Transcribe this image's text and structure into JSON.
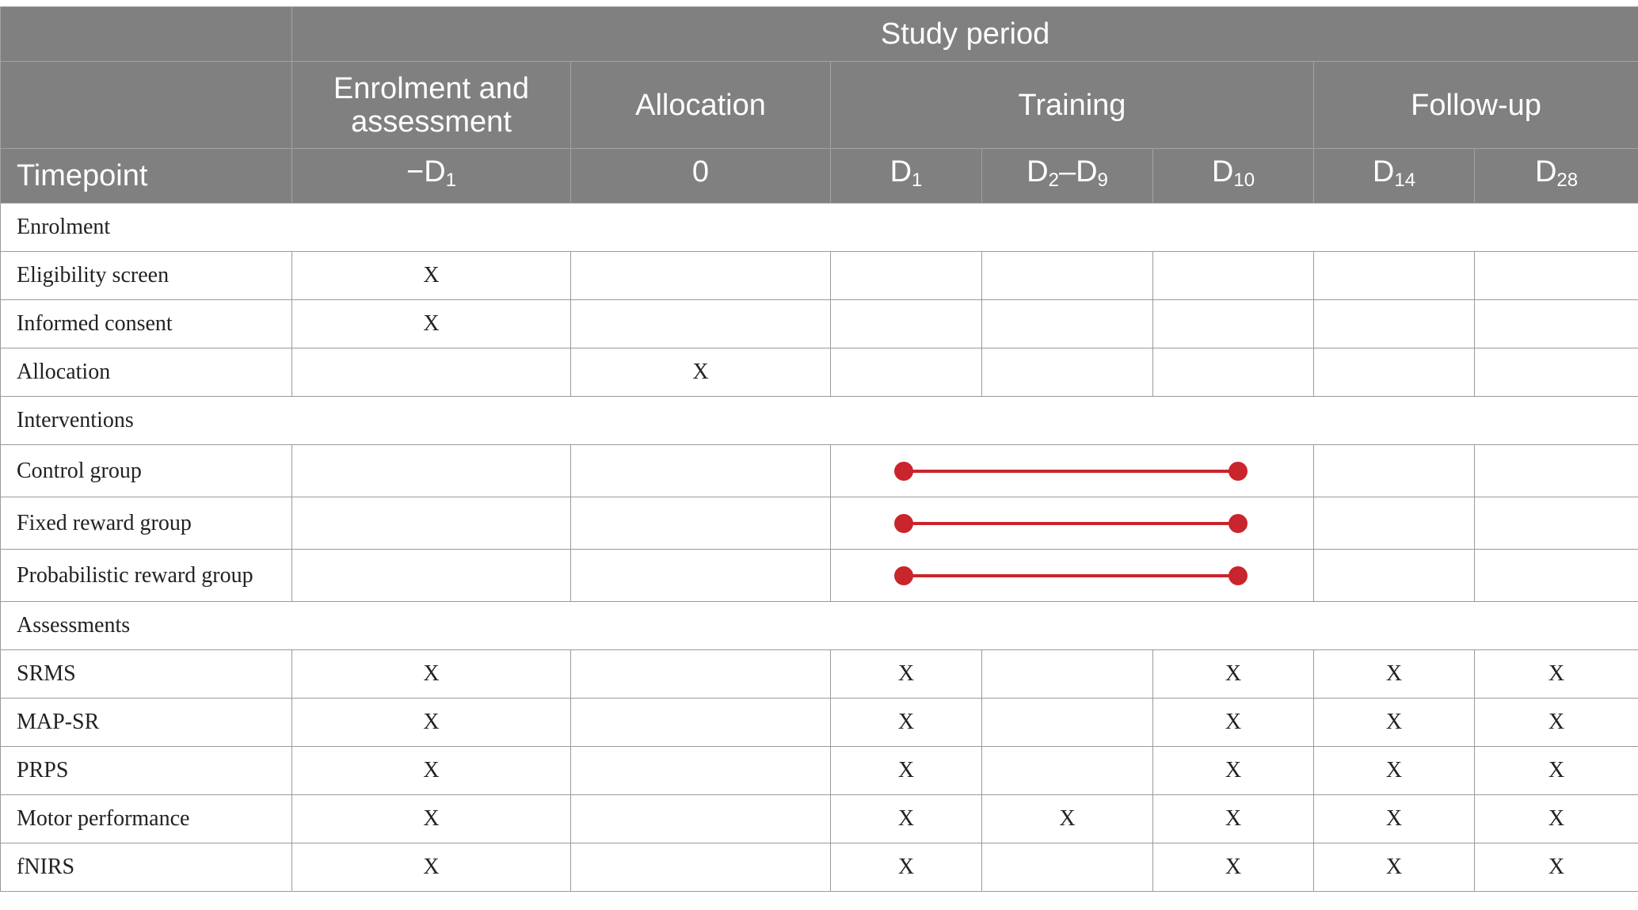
{
  "header": {
    "study_period": "Study period",
    "phases": [
      "Enrolment and assessment",
      "Allocation",
      "Training",
      "Follow-up"
    ],
    "timepoint_label": "Timepoint",
    "timepoints": [
      {
        "prefix": "−D",
        "sub": "1",
        "mid": "",
        "sub2": ""
      },
      {
        "prefix": "0",
        "sub": "",
        "mid": "",
        "sub2": ""
      },
      {
        "prefix": "D",
        "sub": "1",
        "mid": "",
        "sub2": ""
      },
      {
        "prefix": "D",
        "sub": "2",
        "mid": "–D",
        "sub2": "9"
      },
      {
        "prefix": "D",
        "sub": "10",
        "mid": "",
        "sub2": ""
      },
      {
        "prefix": "D",
        "sub": "14",
        "mid": "",
        "sub2": ""
      },
      {
        "prefix": "D",
        "sub": "28",
        "mid": "",
        "sub2": ""
      }
    ]
  },
  "sections": {
    "enrolment": "Enrolment",
    "interventions": "Interventions",
    "assessments": "Assessments"
  },
  "enrolment_rows": [
    {
      "label": "Eligibility screen",
      "marks": [
        "X",
        "",
        "",
        "",
        "",
        "",
        ""
      ]
    },
    {
      "label": "Informed consent",
      "marks": [
        "X",
        "",
        "",
        "",
        "",
        "",
        ""
      ]
    },
    {
      "label": "Allocation",
      "marks": [
        "",
        "X",
        "",
        "",
        "",
        "",
        ""
      ]
    }
  ],
  "intervention_rows": [
    {
      "label": "Control group",
      "span": "D1 to D10"
    },
    {
      "label": "Fixed reward group",
      "span": "D1 to D10"
    },
    {
      "label": "Probabilistic reward group",
      "span": "D1 to D10"
    }
  ],
  "assessment_rows": [
    {
      "label": "SRMS",
      "marks": [
        "X",
        "",
        "X",
        "",
        "X",
        "X",
        "X"
      ]
    },
    {
      "label": "MAP-SR",
      "marks": [
        "X",
        "",
        "X",
        "",
        "X",
        "X",
        "X"
      ]
    },
    {
      "label": "PRPS",
      "marks": [
        "X",
        "",
        "X",
        "",
        "X",
        "X",
        "X"
      ]
    },
    {
      "label": "Motor performance",
      "marks": [
        "X",
        "",
        "X",
        "X",
        "X",
        "X",
        "X"
      ]
    },
    {
      "label": "fNIRS",
      "marks": [
        "X",
        "",
        "X",
        "",
        "X",
        "X",
        "X"
      ]
    }
  ],
  "colors": {
    "header_bg": "#808080",
    "header_text": "#ffffff",
    "intervention_bar": "#c9252c"
  }
}
